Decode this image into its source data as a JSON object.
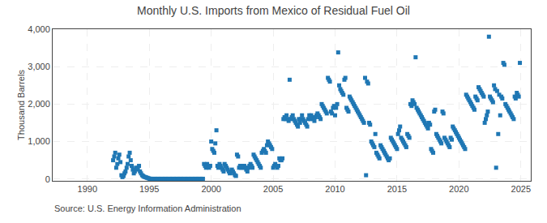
{
  "chart_data": {
    "type": "scatter",
    "title": "Monthly U.S. Imports from Mexico of Residual Fuel Oil",
    "ylabel": "Thousand Barrels",
    "annotations": [
      "Source: U.S. Energy Information Administration"
    ],
    "marker": "square",
    "grid": true,
    "xlim": [
      1987.2,
      2025.8
    ],
    "xticks": [
      1990,
      1995,
      2000,
      2005,
      2010,
      2015,
      2020,
      2025
    ],
    "ylim": [
      -50,
      4000
    ],
    "yticks": [
      0,
      {
        "value": 1000,
        "label": "1,000"
      },
      {
        "value": 2000,
        "label": "2,000"
      },
      {
        "value": 3000,
        "label": "3,000"
      },
      {
        "value": 4000,
        "label": "4,000"
      }
    ],
    "x": [
      1992.08,
      1992.17,
      1992.25,
      1992.33,
      1992.42,
      1992.5,
      1992.58,
      1992.67,
      1992.75,
      1992.83,
      1992.92,
      1993.0,
      1993.08,
      1993.17,
      1993.25,
      1993.33,
      1993.42,
      1993.5,
      1993.58,
      1993.67,
      1993.75,
      1993.83,
      1993.92,
      1994.0,
      1994.08,
      1994.17,
      1994.25,
      1994.33,
      1994.42,
      1994.5,
      1994.58,
      1994.67,
      1994.75,
      1994.83,
      1994.92,
      1995.0,
      1995.08,
      1995.17,
      1995.25,
      1995.33,
      1995.42,
      1995.5,
      1995.58,
      1995.67,
      1995.75,
      1995.83,
      1995.92,
      1996.0,
      1996.08,
      1996.17,
      1996.25,
      1996.33,
      1996.42,
      1996.5,
      1996.58,
      1996.67,
      1996.75,
      1996.83,
      1996.92,
      1997.0,
      1997.08,
      1997.17,
      1997.25,
      1997.33,
      1997.42,
      1997.5,
      1997.58,
      1997.67,
      1997.75,
      1997.83,
      1997.92,
      1998.0,
      1998.08,
      1998.17,
      1998.25,
      1998.33,
      1998.42,
      1998.5,
      1998.58,
      1998.67,
      1998.75,
      1998.83,
      1998.92,
      1999.0,
      1999.08,
      1999.17,
      1999.25,
      1999.33,
      1999.42,
      1999.5,
      1999.58,
      1999.67,
      1999.75,
      1999.83,
      1999.92,
      2000.0,
      2000.08,
      2000.17,
      2000.25,
      2000.33,
      2000.42,
      2000.5,
      2000.58,
      2000.67,
      2000.75,
      2000.83,
      2000.92,
      2001.0,
      2001.08,
      2001.17,
      2001.25,
      2001.33,
      2001.42,
      2001.5,
      2001.58,
      2001.67,
      2001.75,
      2001.83,
      2001.92,
      2002.0,
      2002.08,
      2002.17,
      2002.25,
      2002.33,
      2002.42,
      2002.5,
      2002.58,
      2002.67,
      2002.75,
      2002.83,
      2002.92,
      2003.0,
      2003.08,
      2003.17,
      2003.25,
      2003.33,
      2003.42,
      2003.5,
      2003.58,
      2003.67,
      2003.75,
      2003.83,
      2003.92,
      2004.0,
      2004.08,
      2004.17,
      2004.25,
      2004.33,
      2004.42,
      2004.5,
      2004.58,
      2004.67,
      2004.75,
      2004.83,
      2004.92,
      2005.0,
      2005.08,
      2005.17,
      2005.25,
      2005.33,
      2005.42,
      2005.5,
      2005.58,
      2005.67,
      2005.75,
      2005.83,
      2005.92,
      2006.0,
      2006.08,
      2006.17,
      2006.25,
      2006.33,
      2006.42,
      2006.5,
      2006.58,
      2006.67,
      2006.75,
      2006.83,
      2006.92,
      2007.0,
      2007.08,
      2007.17,
      2007.25,
      2007.33,
      2007.42,
      2007.5,
      2007.58,
      2007.67,
      2007.75,
      2007.83,
      2007.92,
      2008.0,
      2008.08,
      2008.17,
      2008.25,
      2008.33,
      2008.42,
      2008.5,
      2008.58,
      2008.67,
      2008.75,
      2008.83,
      2008.92,
      2009.0,
      2009.08,
      2009.17,
      2009.25,
      2009.33,
      2009.42,
      2009.5,
      2009.58,
      2009.67,
      2009.75,
      2009.83,
      2009.92,
      2010.0,
      2010.08,
      2010.17,
      2010.25,
      2010.33,
      2010.42,
      2010.5,
      2010.58,
      2010.67,
      2010.75,
      2010.83,
      2010.92,
      2011.0,
      2011.08,
      2011.17,
      2011.25,
      2011.33,
      2011.42,
      2011.5,
      2011.58,
      2011.67,
      2011.75,
      2011.83,
      2011.92,
      2012.0,
      2012.08,
      2012.17,
      2012.25,
      2012.33,
      2012.42,
      2012.5,
      2012.58,
      2012.67,
      2012.75,
      2012.83,
      2012.92,
      2013.0,
      2013.08,
      2013.17,
      2013.25,
      2013.33,
      2013.42,
      2013.5,
      2013.58,
      2013.67,
      2013.75,
      2013.83,
      2013.92,
      2014.0,
      2014.08,
      2014.17,
      2014.25,
      2014.33,
      2014.42,
      2014.5,
      2014.58,
      2014.67,
      2014.75,
      2014.83,
      2014.92,
      2015.0,
      2015.08,
      2015.17,
      2015.25,
      2015.33,
      2015.42,
      2015.5,
      2015.58,
      2015.67,
      2015.75,
      2015.83,
      2015.92,
      2016.0,
      2016.08,
      2016.17,
      2016.25,
      2016.33,
      2016.42,
      2016.5,
      2016.58,
      2016.67,
      2016.75,
      2016.83,
      2016.92,
      2017.0,
      2017.08,
      2017.17,
      2017.25,
      2017.33,
      2017.42,
      2017.5,
      2017.58,
      2017.67,
      2017.75,
      2017.83,
      2017.92,
      2018.0,
      2018.08,
      2018.17,
      2018.25,
      2018.33,
      2018.42,
      2018.5,
      2018.58,
      2018.67,
      2018.75,
      2018.83,
      2018.92,
      2019.0,
      2019.08,
      2019.17,
      2019.25,
      2019.33,
      2019.42,
      2019.5,
      2019.58,
      2019.67,
      2019.75,
      2019.83,
      2019.92,
      2020.0,
      2020.08,
      2020.17,
      2020.25,
      2020.33,
      2020.42,
      2020.5,
      2020.58,
      2020.67,
      2020.75,
      2020.83,
      2020.92,
      2021.0,
      2021.08,
      2021.17,
      2021.25,
      2021.33,
      2021.42,
      2021.5,
      2021.58,
      2021.67,
      2021.75,
      2021.83,
      2021.92,
      2022.0,
      2022.08,
      2022.17,
      2022.25,
      2022.33,
      2022.42,
      2022.5,
      2022.58,
      2022.67,
      2022.75,
      2022.83,
      2022.92,
      2023.0,
      2023.08,
      2023.17,
      2023.25,
      2023.33,
      2023.42,
      2023.5,
      2023.58,
      2023.67,
      2023.75,
      2023.83,
      2023.92,
      2024.0,
      2024.08,
      2024.17,
      2024.25,
      2024.33,
      2024.42,
      2024.5,
      2024.58,
      2024.67,
      2024.75,
      2024.83,
      2024.92
    ],
    "values": [
      500,
      600,
      700,
      300,
      400,
      550,
      650,
      450,
      100,
      50,
      80,
      150,
      200,
      300,
      400,
      600,
      700,
      500,
      350,
      250,
      150,
      200,
      300,
      250,
      300,
      350,
      200,
      150,
      100,
      80,
      60,
      50,
      40,
      30,
      20,
      10,
      5,
      5,
      5,
      5,
      5,
      5,
      5,
      5,
      5,
      5,
      5,
      5,
      5,
      5,
      5,
      5,
      5,
      5,
      5,
      5,
      5,
      5,
      5,
      5,
      5,
      5,
      5,
      5,
      5,
      5,
      5,
      5,
      5,
      5,
      5,
      5,
      5,
      5,
      5,
      5,
      5,
      5,
      5,
      5,
      5,
      5,
      5,
      5,
      5,
      5,
      5,
      5,
      400,
      350,
      300,
      400,
      350,
      300,
      350,
      1000,
      800,
      750,
      700,
      950,
      1300,
      350,
      300,
      400,
      350,
      300,
      250,
      200,
      400,
      350,
      300,
      250,
      200,
      150,
      200,
      250,
      200,
      150,
      100,
      80,
      650,
      600,
      300,
      350,
      300,
      350,
      300,
      350,
      300,
      250,
      200,
      300,
      350,
      400,
      350,
      300,
      650,
      600,
      550,
      500,
      450,
      400,
      350,
      300,
      700,
      750,
      800,
      750,
      700,
      900,
      1000,
      950,
      900,
      850,
      800,
      300,
      350,
      400,
      350,
      300,
      350,
      550,
      500,
      500,
      550,
      1600,
      1650,
      1600,
      1700,
      1600,
      1550,
      2650,
      1600,
      1650,
      1700,
      1600,
      1550,
      1500,
      1450,
      1400,
      1600,
      1500,
      1600,
      1700,
      1600,
      1550,
      1500,
      1450,
      1400,
      1600,
      1700,
      1600,
      1700,
      1650,
      1600,
      1550,
      1650,
      1700,
      1750,
      1700,
      1650,
      1600,
      2000,
      1950,
      1900,
      1850,
      1800,
      1750,
      2700,
      2650,
      2600,
      1800,
      1750,
      1900,
      1950,
      1700,
      1900,
      2000,
      3380,
      2500,
      2400,
      2350,
      2300,
      2250,
      2650,
      2700,
      1900,
      1850,
      1800,
      2200,
      2150,
      2100,
      2050,
      2000,
      1950,
      1900,
      1850,
      1800,
      1750,
      1700,
      1650,
      1600,
      1550,
      1500,
      2700,
      100,
      2600,
      2550,
      1500,
      1450,
      1000,
      950,
      900,
      850,
      1200,
      700,
      650,
      600,
      550,
      900,
      850,
      800,
      750,
      700,
      650,
      600,
      550,
      500,
      550,
      1100,
      1050,
      1000,
      950,
      900,
      850,
      800,
      1200,
      1300,
      1400,
      1100,
      1050,
      1000,
      950,
      900,
      850,
      1200,
      1150,
      1100,
      2000,
      1950,
      2100,
      2050,
      2000,
      3250,
      1900,
      1850,
      1800,
      1750,
      1700,
      1650,
      1600,
      1550,
      1500,
      1450,
      1400,
      1350,
      1500,
      1450,
      800,
      750,
      700,
      1800,
      1850,
      1200,
      1150,
      1100,
      1050,
      1000,
      950,
      1800,
      1750,
      1100,
      1050,
      1000,
      950,
      900,
      850,
      1100,
      1050,
      1400,
      1350,
      1300,
      1250,
      1200,
      1150,
      1100,
      1050,
      1000,
      950,
      900,
      850,
      800,
      2250,
      2200,
      2150,
      2100,
      2050,
      2000,
      1950,
      1900,
      1850,
      2200,
      2150,
      2100,
      2450,
      2400,
      2350,
      2300,
      2250,
      2200,
      1500,
      1600,
      1700,
      1800,
      3800,
      2200,
      2150,
      2100,
      2050,
      2500,
      2400,
      300,
      2350,
      1200,
      2250,
      1700,
      2200,
      2150,
      3100,
      3050,
      2000,
      1950,
      1900,
      1850,
      1800,
      1750,
      1700,
      1650,
      1600,
      2200,
      2150,
      2300,
      2250,
      2200,
      3100
    ]
  }
}
